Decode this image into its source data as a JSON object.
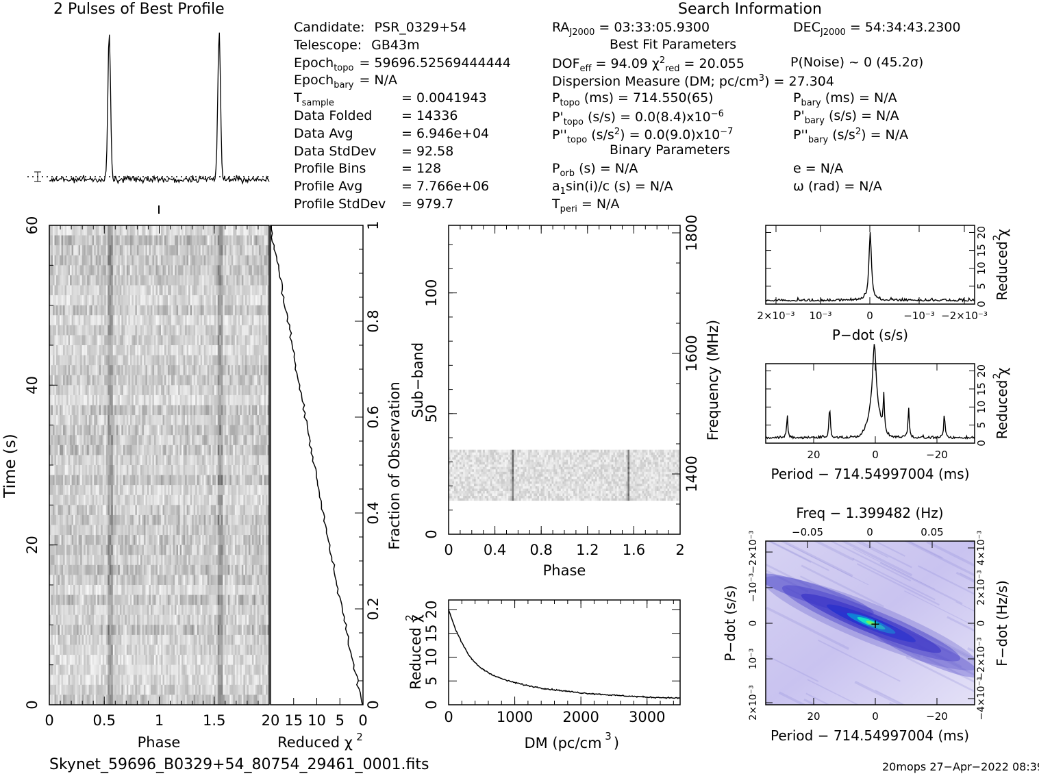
{
  "header": {
    "profile_title": "2 Pulses of Best Profile",
    "search_title": "Search Information",
    "best_fit_title": "Best Fit Parameters",
    "binary_title": "Binary Parameters"
  },
  "info_left": [
    {
      "label": "Candidate:",
      "value": "PSR_0329+54"
    },
    {
      "label": "Telescope:",
      "value": "GB43m"
    },
    {
      "label": "Epoch",
      "sub": "topo",
      "value": "= 59696.52569444444"
    },
    {
      "label": "Epoch",
      "sub": "bary",
      "value": "= N/A"
    },
    {
      "label": "T",
      "sub": "sample",
      "value": "=  0.0041943"
    },
    {
      "label": "Data Folded",
      "value": "=  14336"
    },
    {
      "label": "Data Avg",
      "value": "=  6.946e+04"
    },
    {
      "label": "Data StdDev",
      "value": "=  92.58"
    },
    {
      "label": "Profile Bins",
      "value": "=  128"
    },
    {
      "label": "Profile Avg",
      "value": "=  7.766e+06"
    },
    {
      "label": "Profile StdDev",
      "value": "=  979.7"
    }
  ],
  "info_mid": {
    "ra": "= 03:33:05.9300",
    "ra_sub": "J2000",
    "dof": "DOF",
    "dof_sub": "eff",
    "dof_val": "= 94.09",
    "chi_val": "= 20.055",
    "chi_sub": "red",
    "pnoise": "P(Noise) ~ 0    (45.2σ)",
    "dm_line": "Dispersion Measure (DM; pc/cm",
    "dm_val": ") = 27.304",
    "ptopo": "(ms) =  714.550(65)",
    "pdot_topo": "(s/s) = 0.0(8.4)x10",
    "pdot_exp": "−6",
    "pddot_topo": "(s/s",
    "pddot_val": ") = 0.0(9.0)x10",
    "pddot_exp": "−7",
    "porb": "(s) = N/A",
    "a1": "a",
    "a1_rest": "sin(i)/c (s) = N/A",
    "tperi": "= N/A"
  },
  "info_right": {
    "dec": "= 54:34:43.2300",
    "dec_sub": "J2000",
    "pbary": "(ms) = N/A",
    "pdot_bary": "(s/s) = N/A",
    "pddot_bary": "(s/s",
    "pddot_bary_val": ") = N/A",
    "e": "e = N/A",
    "omega": "ω (rad) = N/A"
  },
  "footer": {
    "filename": "Skynet_59696_B0329+54_80754_29461_0001.fits",
    "stamp": "20mops 27−Apr−2022 08:39"
  },
  "chart_data": [
    {
      "type": "line",
      "name": "pulse_profile",
      "title": "2 Pulses of Best Profile",
      "xlim": [
        0,
        2
      ],
      "peaks_phase": [
        0.545,
        1.545
      ],
      "note_shape": "two sharp pulses over noisy baseline"
    },
    {
      "type": "heatmap",
      "name": "time_phase",
      "xlabel": "Phase",
      "ylabel": "Time (s)",
      "xlim": [
        0,
        2
      ],
      "ylim": [
        0,
        60
      ],
      "xticks": [
        "0",
        "0.5",
        "1",
        "1.5"
      ],
      "yticks": [
        "0",
        "20",
        "40",
        "60"
      ],
      "pulse_phase": [
        0.545,
        1.545
      ]
    },
    {
      "type": "line",
      "name": "chi2_vs_time",
      "xlabel": "Reduced χ²",
      "ylabel": "Fraction of Observation",
      "xlim": [
        20,
        0
      ],
      "ylim": [
        0,
        1
      ],
      "xticks": [
        "20",
        "15",
        "10",
        "5",
        "0"
      ],
      "yticks": [
        "0",
        "0.2",
        "0.4",
        "0.6",
        "0.8",
        "1"
      ],
      "points": [
        [
          0,
          0
        ],
        [
          1.2,
          0.05
        ],
        [
          3,
          0.15
        ],
        [
          5,
          0.25
        ],
        [
          7,
          0.35
        ],
        [
          8.5,
          0.45
        ],
        [
          10.5,
          0.55
        ],
        [
          12.5,
          0.65
        ],
        [
          15,
          0.75
        ],
        [
          17.5,
          0.85
        ],
        [
          19.5,
          0.95
        ],
        [
          20,
          1
        ]
      ]
    },
    {
      "type": "heatmap",
      "name": "subband_phase",
      "xlabel": "Phase",
      "ylabel": "Sub−band",
      "y2label": "Frequency (MHz)",
      "xlim": [
        0,
        2
      ],
      "ylim": [
        0,
        128
      ],
      "xticks": [
        "0",
        "0.4",
        "0.8",
        "1.2",
        "1.6",
        "2"
      ],
      "yticks": [
        "0",
        "50",
        "100"
      ],
      "y2ticks": [
        "1400",
        "1600",
        "1800"
      ],
      "data_subbands": [
        14,
        35
      ],
      "pulse_phase": [
        0.545,
        1.545
      ]
    },
    {
      "type": "line",
      "name": "chi2_vs_dm",
      "xlabel": "DM (pc/cm³)",
      "ylabel": "Reduced χ²",
      "xlim": [
        0,
        3500
      ],
      "ylim": [
        0,
        22
      ],
      "xticks": [
        "0",
        "1000",
        "2000",
        "3000"
      ],
      "yticks": [
        "0",
        "5",
        "10",
        "15",
        "20"
      ],
      "points": [
        [
          0,
          20
        ],
        [
          100,
          16
        ],
        [
          200,
          13
        ],
        [
          300,
          10.5
        ],
        [
          400,
          8.8
        ],
        [
          500,
          7.6
        ],
        [
          700,
          6
        ],
        [
          900,
          5
        ],
        [
          1200,
          4
        ],
        [
          1500,
          3.3
        ],
        [
          2000,
          2.5
        ],
        [
          2500,
          2
        ],
        [
          3000,
          1.6
        ],
        [
          3500,
          1.4
        ]
      ]
    },
    {
      "type": "line",
      "name": "chi2_vs_pdot",
      "xlabel": "P−dot (s/s)",
      "ylabel": "Reduced χ²",
      "xlim": [
        0.0025,
        -0.0025
      ],
      "ylim": [
        0,
        22
      ],
      "xticks": [
        "2×10⁻³",
        "10⁻³",
        "0",
        "−10⁻³",
        "−2×10⁻³"
      ],
      "yticks": [
        "0",
        "5",
        "10",
        "15",
        "20"
      ],
      "peak": [
        0,
        20
      ]
    },
    {
      "type": "line",
      "name": "chi2_vs_period",
      "xlabel": "Period − 714.54997004 (ms)",
      "ylabel": "Reduced χ²",
      "xlim": [
        35,
        -32
      ],
      "ylim": [
        0,
        22
      ],
      "xticks": [
        "20",
        "0",
        "−20"
      ],
      "yticks": [
        "0",
        "5",
        "10",
        "15",
        "20"
      ],
      "peaks": [
        [
          28,
          7
        ],
        [
          14.3,
          10
        ],
        [
          0.6,
          20
        ],
        [
          -10,
          9
        ],
        [
          -22.5,
          8
        ]
      ]
    },
    {
      "type": "heatmap",
      "name": "pdot_period",
      "title": "Freq − 1.399482 (Hz)",
      "xlabel": "Period − 714.54997004 (ms)",
      "ylabel": "P−dot (s/s)",
      "y2label": "F−dot (Hz/s)",
      "xticks": [
        "20",
        "0",
        "−20"
      ],
      "x2ticks": [
        "−0.05",
        "0",
        "0.05"
      ],
      "yticks": [
        "2×10⁻³",
        "10⁻³",
        "0",
        "−10⁻³",
        "−2×10⁻³"
      ],
      "y2ticks": [
        "−4×10⁻³",
        "−2×10⁻³",
        "0",
        "2×10⁻³",
        "4×10⁻³"
      ]
    }
  ]
}
